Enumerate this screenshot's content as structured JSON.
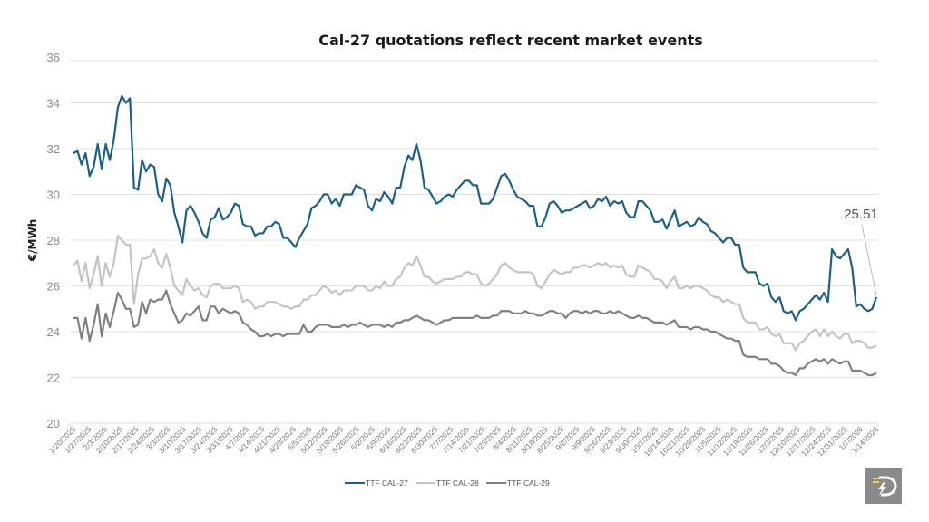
{
  "chart_data": {
    "type": "line",
    "title": "Cal-27 quotations reflect recent market events",
    "xlabel": "",
    "ylabel": "€/MWh",
    "ylim": [
      20,
      36
    ],
    "yticks": [
      20,
      22,
      24,
      26,
      28,
      30,
      32,
      34,
      36
    ],
    "grid": true,
    "legend_position": "bottom",
    "x_tick_labels": [
      "1/20/2025",
      "1/27/2025",
      "2/3/2025",
      "2/10/2025",
      "2/17/2025",
      "2/24/2025",
      "3/3/2025",
      "3/10/2025",
      "3/17/2025",
      "3/24/2025",
      "3/31/2025",
      "4/7/2025",
      "4/14/2025",
      "4/21/2025",
      "4/28/2025",
      "5/5/2025",
      "5/12/2025",
      "5/19/2025",
      "5/26/2025",
      "6/2/2025",
      "6/9/2025",
      "6/16/2025",
      "6/23/2025",
      "6/30/2025",
      "7/7/2025",
      "7/14/2025",
      "7/21/2025",
      "7/28/2025",
      "8/4/2025",
      "8/11/2025",
      "8/18/2025",
      "8/25/2025",
      "9/2/2025",
      "9/9/2025",
      "9/16/2025",
      "9/23/2025",
      "9/30/2025",
      "10/7/2025",
      "10/14/2025",
      "10/21/2025",
      "10/29/2025",
      "11/5/2025",
      "11/12/2025",
      "11/19/2025",
      "11/26/2025",
      "12/3/2025",
      "12/10/2025",
      "12/17/2025",
      "12/24/2025",
      "12/31/2025",
      "1/7/2026",
      "1/14/2026"
    ],
    "series": [
      {
        "name": "TTF CAL-27",
        "color": "#1b6185",
        "values": [
          31.8,
          31.9,
          31.3,
          31.8,
          30.8,
          31.2,
          32.2,
          31.1,
          32.2,
          31.5,
          32.4,
          33.8,
          34.3,
          34.0,
          34.2,
          30.3,
          30.2,
          31.5,
          31.0,
          31.3,
          31.2,
          30.0,
          29.7,
          30.7,
          30.4,
          29.2,
          28.6,
          27.9,
          29.3,
          29.5,
          29.2,
          28.8,
          28.3,
          28.1,
          28.9,
          29.0,
          29.4,
          28.9,
          29.0,
          29.2,
          29.6,
          29.5,
          28.7,
          28.6,
          28.6,
          28.2,
          28.3,
          28.3,
          28.6,
          28.6,
          28.8,
          28.7,
          28.1,
          28.1,
          27.9,
          27.7,
          28.1,
          28.4,
          28.7,
          29.4,
          29.5,
          29.7,
          30.0,
          30.0,
          29.6,
          29.8,
          29.5,
          30.0,
          30.0,
          30.0,
          30.4,
          30.3,
          30.2,
          29.5,
          29.3,
          29.8,
          29.7,
          30.1,
          29.9,
          29.6,
          30.3,
          30.3,
          31.2,
          31.7,
          31.5,
          32.2,
          31.5,
          30.3,
          30.2,
          29.9,
          29.6,
          29.7,
          29.9,
          30.0,
          29.9,
          30.2,
          30.4,
          30.6,
          30.6,
          30.4,
          30.4,
          29.6,
          29.6,
          29.6,
          29.8,
          30.3,
          30.8,
          30.9,
          30.6,
          30.2,
          29.9,
          29.8,
          29.7,
          29.5,
          29.5,
          28.6,
          28.6,
          29.0,
          29.6,
          29.7,
          29.5,
          29.2,
          29.3,
          29.3,
          29.4,
          29.5,
          29.6,
          29.7,
          29.4,
          29.5,
          29.8,
          29.7,
          29.9,
          29.5,
          29.7,
          29.6,
          29.7,
          29.2,
          29.0,
          29.0,
          29.7,
          29.7,
          29.5,
          29.3,
          28.8,
          28.8,
          28.9,
          28.5,
          28.9,
          29.3,
          28.6,
          28.7,
          28.8,
          28.6,
          28.7,
          29.0,
          28.8,
          28.7,
          28.4,
          28.3,
          28.1,
          27.9,
          28.1,
          28.1,
          27.8,
          27.8,
          26.8,
          26.6,
          26.6,
          26.6,
          26.1,
          26.0,
          26.1,
          25.5,
          25.3,
          25.5,
          24.9,
          24.8,
          24.9,
          24.5,
          24.9,
          25.0,
          25.2,
          25.4,
          25.6,
          25.4,
          25.7,
          25.3,
          27.6,
          27.3,
          27.2,
          27.4,
          27.6,
          26.8,
          25.1,
          25.2,
          25.0,
          24.9,
          25.0,
          25.51
        ]
      },
      {
        "name": "TTF CAL-28",
        "color": "#c4c4c4",
        "values": [
          26.9,
          27.1,
          26.2,
          27.0,
          25.9,
          26.5,
          27.3,
          26.0,
          27.0,
          26.4,
          27.0,
          28.2,
          28.0,
          27.8,
          27.8,
          25.2,
          26.5,
          27.2,
          27.2,
          27.3,
          27.6,
          27.0,
          26.8,
          27.4,
          26.8,
          26.0,
          25.8,
          25.6,
          26.3,
          26.0,
          25.8,
          25.9,
          25.6,
          25.5,
          26.0,
          26.1,
          26.1,
          25.9,
          25.9,
          25.9,
          26.0,
          25.9,
          25.3,
          25.4,
          25.3,
          25.0,
          25.1,
          25.1,
          25.3,
          25.3,
          25.3,
          25.2,
          25.1,
          25.1,
          25.0,
          25.1,
          25.1,
          25.4,
          25.4,
          25.6,
          25.6,
          25.8,
          26.0,
          25.9,
          25.7,
          25.8,
          25.6,
          25.8,
          25.8,
          25.8,
          26.0,
          26.0,
          26.0,
          25.8,
          25.8,
          26.0,
          25.9,
          26.2,
          26.0,
          26.0,
          26.3,
          26.4,
          26.8,
          27.0,
          26.9,
          27.3,
          26.9,
          26.4,
          26.4,
          26.2,
          26.1,
          26.2,
          26.3,
          26.3,
          26.3,
          26.4,
          26.4,
          26.6,
          26.6,
          26.5,
          26.5,
          26.1,
          26.0,
          26.1,
          26.3,
          26.5,
          26.9,
          27.0,
          26.8,
          26.7,
          26.6,
          26.6,
          26.6,
          26.6,
          26.5,
          26.0,
          25.9,
          26.2,
          26.5,
          26.7,
          26.6,
          26.5,
          26.6,
          26.6,
          26.8,
          26.8,
          26.9,
          26.9,
          26.8,
          26.9,
          27.0,
          26.9,
          27.0,
          26.8,
          26.9,
          26.8,
          26.9,
          26.5,
          26.4,
          26.4,
          26.9,
          26.8,
          26.7,
          26.6,
          26.3,
          26.3,
          26.2,
          25.9,
          26.2,
          26.4,
          25.9,
          25.9,
          26.0,
          25.9,
          26.0,
          26.0,
          25.9,
          25.8,
          25.6,
          25.5,
          25.5,
          25.3,
          25.4,
          25.3,
          25.2,
          25.2,
          24.6,
          24.4,
          24.4,
          24.4,
          24.1,
          24.1,
          24.2,
          23.9,
          23.8,
          23.9,
          23.5,
          23.5,
          23.5,
          23.2,
          23.5,
          23.6,
          23.8,
          24.0,
          24.1,
          23.8,
          24.1,
          23.8,
          24.0,
          23.8,
          23.7,
          23.9,
          23.9,
          23.5,
          23.6,
          23.6,
          23.5,
          23.3,
          23.3,
          23.4
        ]
      },
      {
        "name": "TTF CAL-29",
        "color": "#808080",
        "values": [
          24.6,
          24.6,
          23.7,
          24.6,
          23.6,
          24.3,
          25.2,
          23.8,
          24.8,
          24.2,
          24.9,
          25.7,
          25.4,
          25.0,
          25.0,
          24.2,
          24.3,
          25.3,
          24.8,
          25.4,
          25.3,
          25.4,
          25.4,
          25.8,
          25.2,
          24.8,
          24.4,
          24.5,
          24.8,
          24.7,
          24.9,
          25.1,
          24.5,
          24.5,
          25.1,
          25.1,
          24.8,
          25.0,
          24.9,
          24.8,
          24.9,
          24.8,
          24.4,
          24.3,
          24.1,
          24.0,
          23.8,
          23.8,
          23.9,
          23.8,
          23.9,
          23.9,
          23.8,
          23.9,
          23.9,
          23.9,
          23.9,
          24.3,
          24.0,
          24.0,
          24.2,
          24.3,
          24.3,
          24.3,
          24.2,
          24.2,
          24.2,
          24.3,
          24.2,
          24.3,
          24.3,
          24.4,
          24.3,
          24.2,
          24.3,
          24.3,
          24.3,
          24.2,
          24.3,
          24.2,
          24.4,
          24.4,
          24.5,
          24.5,
          24.6,
          24.7,
          24.6,
          24.5,
          24.5,
          24.4,
          24.3,
          24.4,
          24.5,
          24.5,
          24.6,
          24.6,
          24.6,
          24.6,
          24.6,
          24.6,
          24.7,
          24.6,
          24.6,
          24.6,
          24.7,
          24.7,
          24.9,
          24.9,
          24.9,
          24.8,
          24.8,
          24.8,
          24.9,
          24.8,
          24.8,
          24.7,
          24.7,
          24.8,
          24.9,
          24.9,
          24.8,
          24.8,
          24.6,
          24.8,
          24.9,
          24.9,
          24.8,
          24.9,
          24.8,
          24.9,
          24.9,
          24.8,
          24.8,
          24.9,
          24.8,
          24.9,
          24.8,
          24.7,
          24.6,
          24.6,
          24.7,
          24.6,
          24.6,
          24.5,
          24.4,
          24.4,
          24.4,
          24.3,
          24.4,
          24.5,
          24.2,
          24.2,
          24.2,
          24.1,
          24.2,
          24.2,
          24.1,
          24.1,
          24.0,
          24.0,
          23.9,
          23.8,
          23.7,
          23.7,
          23.6,
          23.6,
          23.0,
          22.9,
          22.9,
          22.9,
          22.8,
          22.8,
          22.8,
          22.6,
          22.6,
          22.5,
          22.3,
          22.2,
          22.2,
          22.1,
          22.4,
          22.4,
          22.6,
          22.7,
          22.8,
          22.7,
          22.8,
          22.6,
          22.8,
          22.7,
          22.6,
          22.7,
          22.7,
          22.3,
          22.3,
          22.3,
          22.2,
          22.1,
          22.1,
          22.2
        ]
      }
    ],
    "annotations": [
      {
        "text": "25.51",
        "series": "TTF CAL-27",
        "point": "last"
      }
    ]
  },
  "logo": {
    "name": "brand-logo",
    "icon": "lightning-d-icon"
  }
}
